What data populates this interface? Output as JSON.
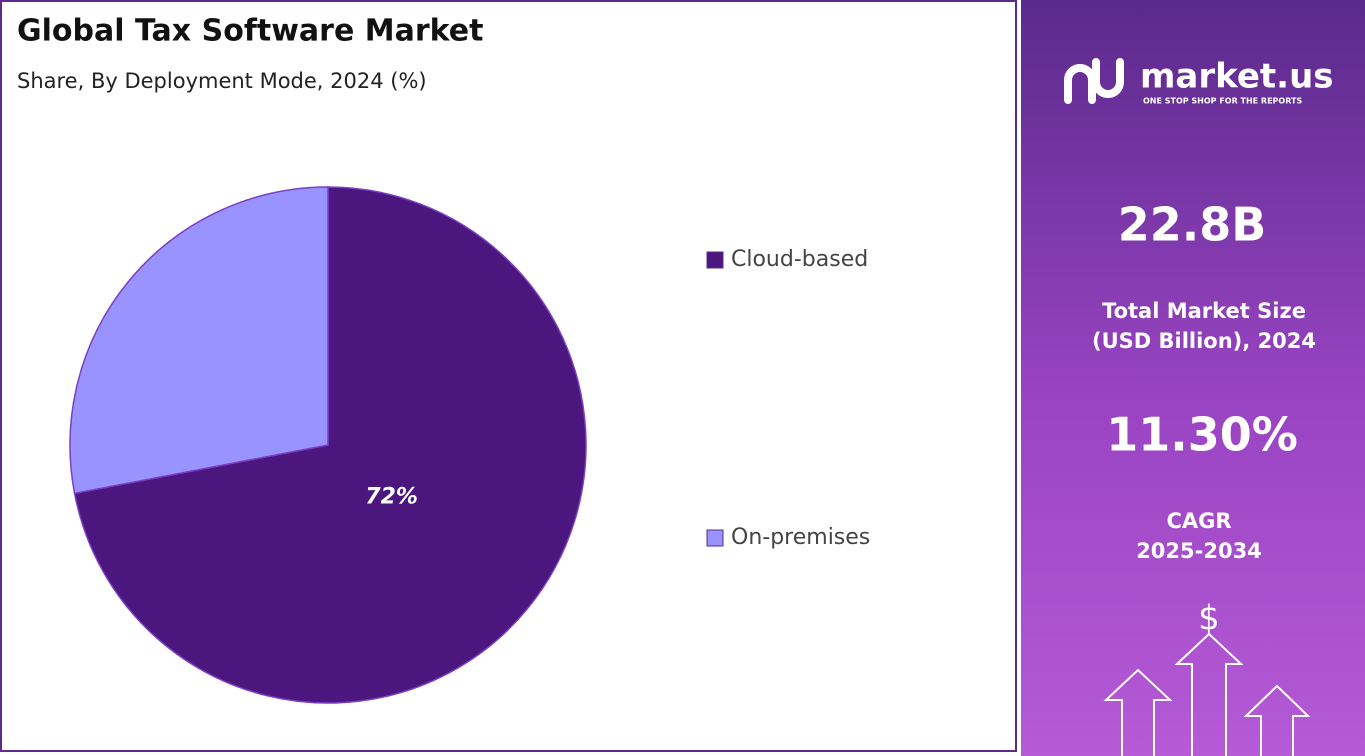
{
  "chart_data": {
    "type": "pie",
    "title": "Global Tax Software Market",
    "subtitle": "Share, By Deployment Mode, 2024 (%)",
    "categories": [
      "Cloud-based",
      "On-premises"
    ],
    "values": [
      72,
      28
    ],
    "value_labels": [
      "72%",
      null
    ],
    "colors": [
      "#4b167d",
      "#9893ff"
    ],
    "legend": "right"
  },
  "side_panel": {
    "logo": "market.us",
    "tagline": "ONE STOP SHOP FOR THE REPORTS",
    "market_size": "22.8B",
    "market_size_label": [
      "Total Market Size",
      "(USD Billion), 2024"
    ],
    "cagr": "11.30%",
    "cagr_label": [
      "CAGR",
      "2025-2034"
    ],
    "icon": "$"
  }
}
